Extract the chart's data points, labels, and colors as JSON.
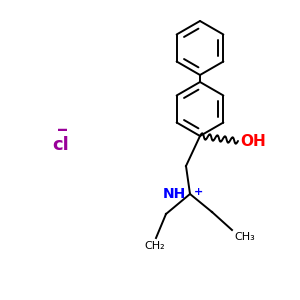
{
  "bg_color": "#ffffff",
  "line_color": "#000000",
  "cl_color": "#990099",
  "nh_color": "#0000ff",
  "oh_color": "#ff0000",
  "oh_text": "OH",
  "nh_text": "NH",
  "nh_plus": "+",
  "ch2_text": "CH₂",
  "ch3_text": "CH₃",
  "figsize": [
    3.0,
    3.0
  ],
  "dpi": 100
}
